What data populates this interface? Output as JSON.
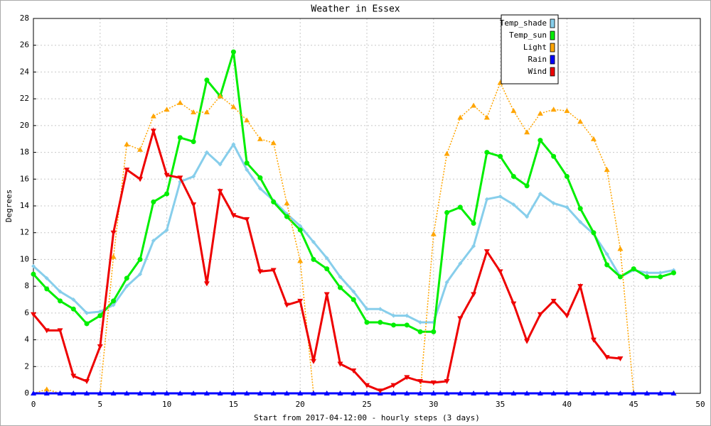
{
  "chart_data": {
    "type": "line",
    "title": "Weather in Essex",
    "xlabel": "Start from 2017-04-12:00 - hourly steps (3 days)",
    "ylabel": "Degrees",
    "x": [
      0,
      1,
      2,
      3,
      4,
      5,
      6,
      7,
      8,
      9,
      10,
      11,
      12,
      13,
      14,
      15,
      16,
      17,
      18,
      19,
      20,
      21,
      22,
      23,
      24,
      25,
      26,
      27,
      28,
      29,
      30,
      31,
      32,
      33,
      34,
      35,
      36,
      37,
      38,
      39,
      40,
      41,
      42,
      43,
      44,
      45,
      46,
      47,
      48
    ],
    "xlim": [
      0,
      50
    ],
    "xticks": [
      0,
      5,
      10,
      15,
      20,
      25,
      30,
      35,
      40,
      45,
      50
    ],
    "ylim": [
      0,
      28
    ],
    "yticks": [
      0,
      2,
      4,
      6,
      8,
      10,
      12,
      14,
      16,
      18,
      20,
      22,
      24,
      26,
      28
    ],
    "grid": true,
    "legend": "top-right",
    "series": [
      {
        "name": "Temp_shade",
        "color": "#87ceeb",
        "marker": "diamond",
        "dash": "solid",
        "values": [
          9.5,
          8.6,
          7.6,
          7.0,
          6.0,
          6.1,
          6.6,
          8.0,
          8.9,
          11.4,
          12.2,
          15.8,
          16.2,
          18.0,
          17.1,
          18.6,
          16.7,
          15.3,
          14.4,
          13.4,
          12.5,
          11.3,
          10.1,
          8.7,
          7.6,
          6.3,
          6.3,
          5.8,
          5.8,
          5.3,
          5.3,
          8.3,
          9.7,
          11.0,
          14.5,
          14.7,
          14.1,
          13.2,
          14.9,
          14.2,
          13.9,
          12.8,
          11.9,
          10.4,
          8.7,
          9.2,
          9.0,
          9.0,
          9.2
        ]
      },
      {
        "name": "Temp_sun",
        "color": "#00ee00",
        "marker": "circle",
        "dash": "solid",
        "values": [
          8.9,
          7.8,
          6.9,
          6.3,
          5.2,
          5.8,
          6.9,
          8.6,
          10.0,
          14.3,
          14.9,
          19.1,
          18.8,
          23.4,
          22.2,
          25.5,
          17.2,
          16.1,
          14.3,
          13.2,
          12.2,
          10.0,
          9.3,
          7.9,
          7.0,
          5.3,
          5.3,
          5.1,
          5.1,
          4.6,
          4.6,
          13.5,
          13.9,
          12.7,
          18.0,
          17.7,
          16.2,
          15.5,
          18.9,
          17.7,
          16.2,
          13.8,
          12.0,
          9.6,
          8.7,
          9.3,
          8.7,
          8.7,
          9.0
        ]
      },
      {
        "name": "Light",
        "color": "#ffa500",
        "marker": "triangle-up",
        "dash": "dotted",
        "values": [
          0,
          0.3,
          0,
          0,
          0,
          0,
          10.2,
          18.6,
          18.2,
          20.7,
          21.2,
          21.7,
          21.0,
          21.0,
          22.2,
          21.4,
          20.4,
          19.0,
          18.7,
          14.2,
          9.9,
          0,
          0,
          0,
          0,
          0,
          0,
          0,
          0,
          0,
          11.9,
          17.9,
          20.6,
          21.5,
          20.6,
          23.2,
          21.1,
          19.5,
          20.9,
          21.2,
          21.1,
          20.3,
          19.0,
          16.7,
          10.8,
          0,
          0,
          0,
          0
        ]
      },
      {
        "name": "Rain",
        "color": "#0000ff",
        "marker": "triangle-up",
        "dash": "solid",
        "values": [
          0,
          0,
          0,
          0,
          0,
          0,
          0,
          0,
          0,
          0,
          0,
          0,
          0,
          0,
          0,
          0,
          0,
          0,
          0,
          0,
          0,
          0,
          0,
          0,
          0,
          0,
          0,
          0,
          0,
          0,
          0,
          0,
          0,
          0,
          0,
          0,
          0,
          0,
          0,
          0,
          0,
          0,
          0,
          0,
          0,
          0,
          0,
          0,
          0
        ]
      },
      {
        "name": "Wind",
        "color": "#ee0000",
        "marker": "triangle-down",
        "dash": "solid",
        "values": [
          5.9,
          4.7,
          4.7,
          1.3,
          0.9,
          3.5,
          12.0,
          16.7,
          16.0,
          19.6,
          16.3,
          16.1,
          14.1,
          8.2,
          15.1,
          13.3,
          13.0,
          9.1,
          9.2,
          6.6,
          6.9,
          2.4,
          7.4,
          2.2,
          1.7,
          0.6,
          0.2,
          0.6,
          1.2,
          0.9,
          0.8,
          0.9,
          5.6,
          7.4,
          10.6,
          9.1,
          6.7,
          3.9,
          5.9,
          6.9,
          5.8,
          8.0,
          4.0,
          2.7,
          2.6,
          null,
          null,
          null,
          null
        ]
      }
    ]
  }
}
